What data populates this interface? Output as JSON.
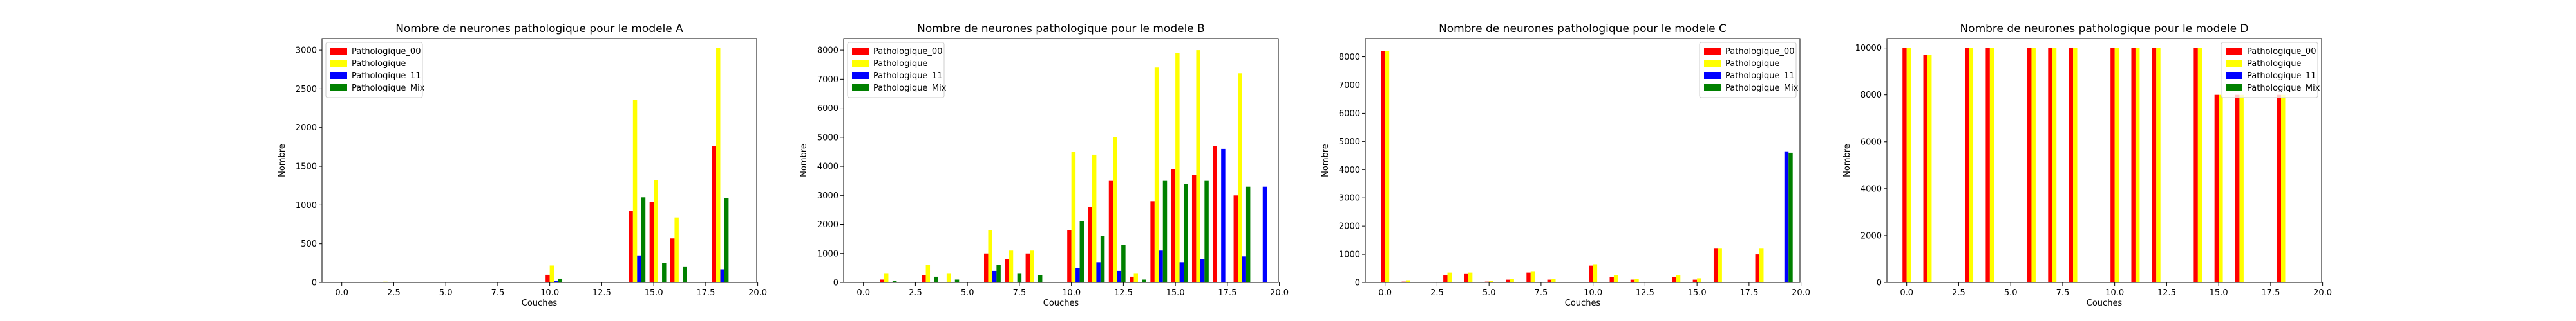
{
  "colors": {
    "Pathologique_00": "#ff0000",
    "Pathologique": "#ffff00",
    "Pathologique_11": "#0000ff",
    "Pathologique_Mix": "#008000"
  },
  "chart_data": [
    {
      "type": "bar",
      "title": "Nombre de neurones pathologique pour le modele A",
      "xlabel": "Couches",
      "ylabel": "Nombre",
      "xlim": [
        -0.95,
        19.95
      ],
      "ylim": [
        0,
        3150
      ],
      "xticks": [
        "0.0",
        "2.5",
        "5.0",
        "7.5",
        "10.0",
        "12.5",
        "15.0",
        "17.5",
        "20.0"
      ],
      "yticks": [
        0,
        500,
        1000,
        1500,
        2000,
        2500,
        3000
      ],
      "legend": "top-left",
      "categories": [
        0,
        1,
        2,
        3,
        4,
        5,
        6,
        7,
        8,
        9,
        10,
        11,
        12,
        13,
        14,
        15,
        16,
        17,
        18,
        19
      ],
      "series": [
        {
          "name": "Pathologique_00",
          "values": [
            0,
            0,
            0,
            0,
            0,
            0,
            0,
            0,
            0,
            0,
            100,
            0,
            0,
            0,
            920,
            1040,
            570,
            0,
            1760,
            0
          ]
        },
        {
          "name": "Pathologique",
          "values": [
            0,
            0,
            10,
            0,
            0,
            0,
            0,
            0,
            0,
            0,
            220,
            0,
            0,
            0,
            2360,
            1320,
            840,
            0,
            3030,
            0
          ]
        },
        {
          "name": "Pathologique_11",
          "values": [
            0,
            0,
            0,
            0,
            0,
            0,
            0,
            0,
            0,
            0,
            20,
            0,
            0,
            0,
            350,
            0,
            0,
            0,
            170,
            0
          ]
        },
        {
          "name": "Pathologique_Mix",
          "values": [
            0,
            0,
            0,
            0,
            0,
            0,
            0,
            0,
            0,
            0,
            50,
            0,
            0,
            0,
            1100,
            250,
            200,
            0,
            1090,
            0
          ]
        }
      ]
    },
    {
      "type": "bar",
      "title": "Nombre de neurones pathologique pour le modele B",
      "xlabel": "Couches",
      "ylabel": "Nombre",
      "xlim": [
        -0.95,
        19.95
      ],
      "ylim": [
        0,
        8400
      ],
      "xticks": [
        "0.0",
        "2.5",
        "5.0",
        "7.5",
        "10.0",
        "12.5",
        "15.0",
        "17.5",
        "20.0"
      ],
      "yticks": [
        0,
        1000,
        2000,
        3000,
        4000,
        5000,
        6000,
        7000,
        8000
      ],
      "legend": "top-left",
      "categories": [
        0,
        1,
        2,
        3,
        4,
        5,
        6,
        7,
        8,
        9,
        10,
        11,
        12,
        13,
        14,
        15,
        16,
        17,
        18,
        19
      ],
      "series": [
        {
          "name": "Pathologique_00",
          "values": [
            0,
            100,
            0,
            250,
            0,
            0,
            1000,
            800,
            1000,
            0,
            1800,
            2600,
            3500,
            200,
            2800,
            3900,
            3700,
            4700,
            3000,
            0
          ]
        },
        {
          "name": "Pathologique",
          "values": [
            0,
            300,
            0,
            600,
            300,
            0,
            1800,
            1100,
            1100,
            0,
            4500,
            4400,
            5000,
            300,
            7400,
            7900,
            8000,
            0,
            7200,
            0
          ]
        },
        {
          "name": "Pathologique_11",
          "values": [
            0,
            0,
            0,
            0,
            0,
            0,
            400,
            0,
            0,
            0,
            500,
            700,
            400,
            0,
            1100,
            700,
            800,
            4600,
            900,
            3300
          ]
        },
        {
          "name": "Pathologique_Mix",
          "values": [
            0,
            50,
            0,
            200,
            100,
            0,
            600,
            300,
            250,
            0,
            2100,
            1600,
            1300,
            100,
            3500,
            3400,
            3500,
            0,
            3300,
            0
          ]
        }
      ]
    },
    {
      "type": "bar",
      "title": "Nombre de neurones pathologique pour le modele C",
      "xlabel": "Couches",
      "ylabel": "Nombre",
      "xlim": [
        -0.95,
        19.95
      ],
      "ylim": [
        0,
        8650
      ],
      "xticks": [
        "0.0",
        "2.5",
        "5.0",
        "7.5",
        "10.0",
        "12.5",
        "15.0",
        "17.5",
        "20.0"
      ],
      "yticks": [
        0,
        1000,
        2000,
        3000,
        4000,
        5000,
        6000,
        7000,
        8000
      ],
      "legend": "top-right",
      "categories": [
        0,
        1,
        2,
        3,
        4,
        5,
        6,
        7,
        8,
        9,
        10,
        11,
        12,
        13,
        14,
        15,
        16,
        17,
        18,
        19
      ],
      "series": [
        {
          "name": "Pathologique_00",
          "values": [
            8200,
            30,
            0,
            250,
            300,
            30,
            100,
            350,
            100,
            0,
            600,
            200,
            100,
            0,
            200,
            100,
            1200,
            0,
            1000,
            0
          ]
        },
        {
          "name": "Pathologique",
          "values": [
            8200,
            80,
            0,
            350,
            350,
            60,
            120,
            400,
            130,
            0,
            650,
            250,
            130,
            0,
            250,
            150,
            1200,
            0,
            1200,
            0
          ]
        },
        {
          "name": "Pathologique_11",
          "values": [
            0,
            0,
            0,
            0,
            0,
            0,
            0,
            0,
            0,
            0,
            0,
            0,
            0,
            0,
            0,
            0,
            0,
            0,
            0,
            4650
          ]
        },
        {
          "name": "Pathologique_Mix",
          "values": [
            0,
            0,
            0,
            0,
            0,
            0,
            0,
            0,
            0,
            0,
            0,
            0,
            0,
            0,
            0,
            0,
            0,
            0,
            0,
            4600
          ]
        }
      ]
    },
    {
      "type": "bar",
      "title": "Nombre de neurones pathologique pour le modele D",
      "xlabel": "Couches",
      "ylabel": "Nombre",
      "xlim": [
        -0.95,
        19.95
      ],
      "ylim": [
        0,
        10400
      ],
      "xticks": [
        "0.0",
        "2.5",
        "5.0",
        "7.5",
        "10.0",
        "12.5",
        "15.0",
        "17.5",
        "20.0"
      ],
      "yticks": [
        0,
        2000,
        4000,
        6000,
        8000,
        10000
      ],
      "legend": "top-right",
      "categories": [
        0,
        1,
        2,
        3,
        4,
        5,
        6,
        7,
        8,
        9,
        10,
        11,
        12,
        13,
        14,
        15,
        16,
        17,
        18,
        19
      ],
      "series": [
        {
          "name": "Pathologique_00",
          "values": [
            10000,
            9700,
            0,
            10000,
            10000,
            0,
            10000,
            10000,
            10000,
            0,
            10000,
            10000,
            10000,
            0,
            10000,
            8000,
            8000,
            0,
            8000,
            0
          ]
        },
        {
          "name": "Pathologique",
          "values": [
            10000,
            9700,
            0,
            10000,
            10000,
            0,
            10000,
            10000,
            10000,
            0,
            10000,
            10000,
            10000,
            0,
            10000,
            8000,
            8000,
            0,
            8000,
            0
          ]
        },
        {
          "name": "Pathologique_11",
          "values": [
            0,
            0,
            0,
            0,
            0,
            0,
            0,
            0,
            0,
            0,
            0,
            0,
            0,
            0,
            0,
            0,
            0,
            0,
            0,
            0
          ]
        },
        {
          "name": "Pathologique_Mix",
          "values": [
            0,
            0,
            0,
            0,
            0,
            0,
            0,
            0,
            0,
            0,
            0,
            0,
            0,
            0,
            0,
            0,
            0,
            0,
            0,
            0
          ]
        }
      ]
    }
  ]
}
